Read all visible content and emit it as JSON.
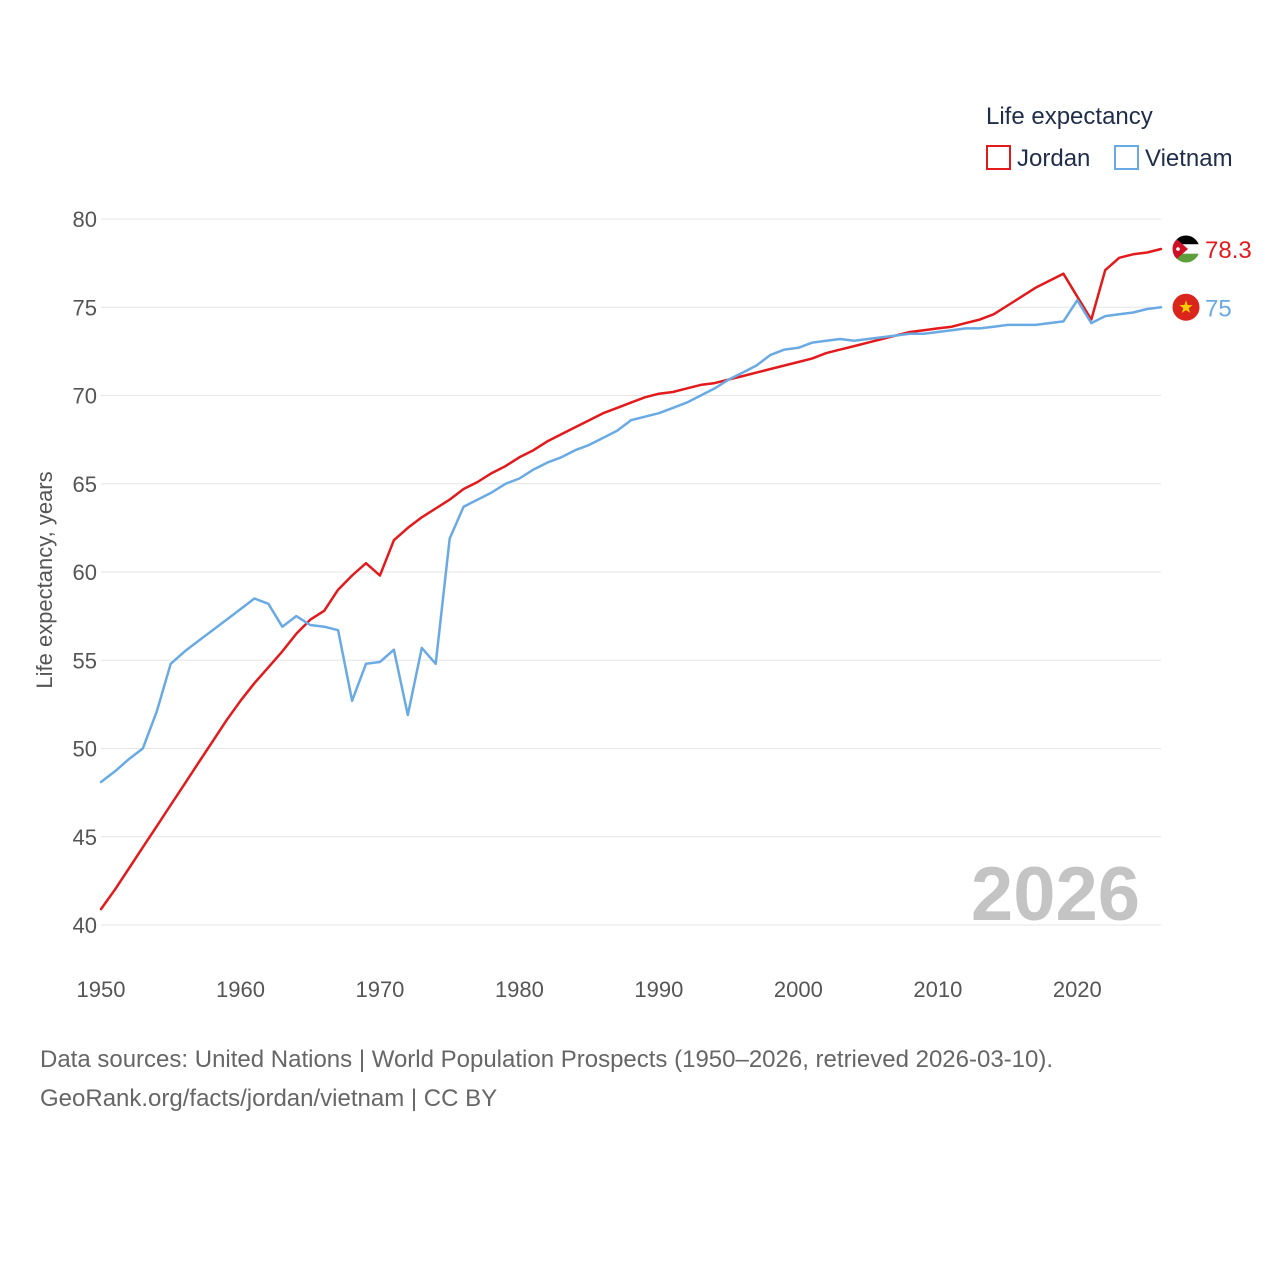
{
  "chart_data": {
    "type": "line",
    "title": "Life expectancy",
    "ylabel": "Life expectancy, years",
    "xlabel": "",
    "xlim": [
      1950,
      2026
    ],
    "ylim": [
      40,
      80
    ],
    "x_ticks": [
      "1950",
      "1960",
      "1970",
      "1980",
      "1990",
      "2000",
      "2010",
      "2020"
    ],
    "y_ticks": [
      "40",
      "45",
      "50",
      "55",
      "60",
      "65",
      "70",
      "75",
      "80"
    ],
    "legend_placement": "top-right",
    "current_year": "2026",
    "series": [
      {
        "name": "Jordan",
        "color": "#e31a1c",
        "end_label": "78.3",
        "flag": "jordan-flag",
        "points": [
          [
            1950,
            40.9
          ],
          [
            1951,
            42.0
          ],
          [
            1952,
            43.2
          ],
          [
            1953,
            44.4
          ],
          [
            1954,
            45.6
          ],
          [
            1955,
            46.8
          ],
          [
            1956,
            48.0
          ],
          [
            1957,
            49.2
          ],
          [
            1958,
            50.4
          ],
          [
            1959,
            51.6
          ],
          [
            1960,
            52.7
          ],
          [
            1961,
            53.7
          ],
          [
            1962,
            54.6
          ],
          [
            1963,
            55.5
          ],
          [
            1964,
            56.5
          ],
          [
            1965,
            57.3
          ],
          [
            1966,
            57.8
          ],
          [
            1967,
            59.0
          ],
          [
            1968,
            59.8
          ],
          [
            1969,
            60.5
          ],
          [
            1970,
            59.8
          ],
          [
            1971,
            61.8
          ],
          [
            1972,
            62.5
          ],
          [
            1973,
            63.1
          ],
          [
            1974,
            63.6
          ],
          [
            1975,
            64.1
          ],
          [
            1976,
            64.7
          ],
          [
            1977,
            65.1
          ],
          [
            1978,
            65.6
          ],
          [
            1979,
            66.0
          ],
          [
            1980,
            66.5
          ],
          [
            1981,
            66.9
          ],
          [
            1982,
            67.4
          ],
          [
            1983,
            67.8
          ],
          [
            1984,
            68.2
          ],
          [
            1985,
            68.6
          ],
          [
            1986,
            69.0
          ],
          [
            1987,
            69.3
          ],
          [
            1988,
            69.6
          ],
          [
            1989,
            69.9
          ],
          [
            1990,
            70.1
          ],
          [
            1991,
            70.2
          ],
          [
            1992,
            70.4
          ],
          [
            1993,
            70.6
          ],
          [
            1994,
            70.7
          ],
          [
            1995,
            70.9
          ],
          [
            1996,
            71.1
          ],
          [
            1997,
            71.3
          ],
          [
            1998,
            71.5
          ],
          [
            1999,
            71.7
          ],
          [
            2000,
            71.9
          ],
          [
            2001,
            72.1
          ],
          [
            2002,
            72.4
          ],
          [
            2003,
            72.6
          ],
          [
            2004,
            72.8
          ],
          [
            2005,
            73.0
          ],
          [
            2006,
            73.2
          ],
          [
            2007,
            73.4
          ],
          [
            2008,
            73.6
          ],
          [
            2009,
            73.7
          ],
          [
            2010,
            73.8
          ],
          [
            2011,
            73.9
          ],
          [
            2012,
            74.1
          ],
          [
            2013,
            74.3
          ],
          [
            2014,
            74.6
          ],
          [
            2015,
            75.1
          ],
          [
            2016,
            75.6
          ],
          [
            2017,
            76.1
          ],
          [
            2018,
            76.5
          ],
          [
            2019,
            76.9
          ],
          [
            2020,
            75.6
          ],
          [
            2021,
            74.3
          ],
          [
            2022,
            77.1
          ],
          [
            2023,
            77.8
          ],
          [
            2024,
            78.0
          ],
          [
            2025,
            78.1
          ],
          [
            2026,
            78.3
          ]
        ]
      },
      {
        "name": "Vietnam",
        "color": "#6aaae4",
        "end_label": "75",
        "flag": "vietnam-flag",
        "points": [
          [
            1950,
            48.1
          ],
          [
            1951,
            48.7
          ],
          [
            1952,
            49.4
          ],
          [
            1953,
            50.0
          ],
          [
            1954,
            52.1
          ],
          [
            1955,
            54.8
          ],
          [
            1956,
            55.5
          ],
          [
            1957,
            56.1
          ],
          [
            1958,
            56.7
          ],
          [
            1959,
            57.3
          ],
          [
            1960,
            57.9
          ],
          [
            1961,
            58.5
          ],
          [
            1962,
            58.2
          ],
          [
            1963,
            56.9
          ],
          [
            1964,
            57.5
          ],
          [
            1965,
            57.0
          ],
          [
            1966,
            56.9
          ],
          [
            1967,
            56.7
          ],
          [
            1968,
            52.7
          ],
          [
            1969,
            54.8
          ],
          [
            1970,
            54.9
          ],
          [
            1971,
            55.6
          ],
          [
            1972,
            51.9
          ],
          [
            1973,
            55.7
          ],
          [
            1974,
            54.8
          ],
          [
            1975,
            61.9
          ],
          [
            1976,
            63.7
          ],
          [
            1977,
            64.1
          ],
          [
            1978,
            64.5
          ],
          [
            1979,
            65.0
          ],
          [
            1980,
            65.3
          ],
          [
            1981,
            65.8
          ],
          [
            1982,
            66.2
          ],
          [
            1983,
            66.5
          ],
          [
            1984,
            66.9
          ],
          [
            1985,
            67.2
          ],
          [
            1986,
            67.6
          ],
          [
            1987,
            68.0
          ],
          [
            1988,
            68.6
          ],
          [
            1989,
            68.8
          ],
          [
            1990,
            69.0
          ],
          [
            1991,
            69.3
          ],
          [
            1992,
            69.6
          ],
          [
            1993,
            70.0
          ],
          [
            1994,
            70.4
          ],
          [
            1995,
            70.9
          ],
          [
            1996,
            71.3
          ],
          [
            1997,
            71.7
          ],
          [
            1998,
            72.3
          ],
          [
            1999,
            72.6
          ],
          [
            2000,
            72.7
          ],
          [
            2001,
            73.0
          ],
          [
            2002,
            73.1
          ],
          [
            2003,
            73.2
          ],
          [
            2004,
            73.1
          ],
          [
            2005,
            73.2
          ],
          [
            2006,
            73.3
          ],
          [
            2007,
            73.4
          ],
          [
            2008,
            73.5
          ],
          [
            2009,
            73.5
          ],
          [
            2010,
            73.6
          ],
          [
            2011,
            73.7
          ],
          [
            2012,
            73.8
          ],
          [
            2013,
            73.8
          ],
          [
            2014,
            73.9
          ],
          [
            2015,
            74.0
          ],
          [
            2016,
            74.0
          ],
          [
            2017,
            74.0
          ],
          [
            2018,
            74.1
          ],
          [
            2019,
            74.2
          ],
          [
            2020,
            75.4
          ],
          [
            2021,
            74.1
          ],
          [
            2022,
            74.5
          ],
          [
            2023,
            74.6
          ],
          [
            2024,
            74.7
          ],
          [
            2025,
            74.9
          ],
          [
            2026,
            75.0
          ]
        ]
      }
    ]
  },
  "footer": {
    "line1": "Data sources: United Nations | World Population Prospects (1950–2026, retrieved 2026-03-10).",
    "line2": "GeoRank.org/facts/jordan/vietnam | CC BY"
  }
}
